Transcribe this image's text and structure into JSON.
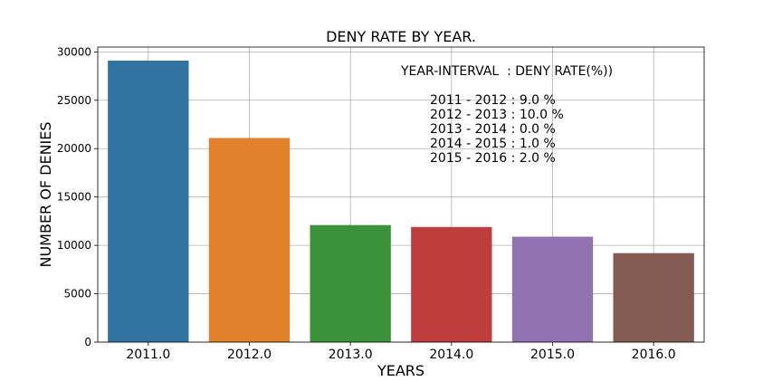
{
  "chart_data": {
    "type": "bar",
    "title": "DENY RATE BY YEAR.",
    "xlabel": "YEARS",
    "ylabel": "NUMBER OF DENIES",
    "categories": [
      "2011.0",
      "2012.0",
      "2013.0",
      "2014.0",
      "2015.0",
      "2016.0"
    ],
    "values": [
      29100,
      21100,
      12100,
      11900,
      10900,
      9200
    ],
    "colors": [
      "#3274a1",
      "#e1812c",
      "#3a923a",
      "#c03d3e",
      "#9372b2",
      "#845b53"
    ],
    "ylim": [
      0,
      30500
    ],
    "yticks": [
      0,
      5000,
      10000,
      15000,
      20000,
      25000,
      30000
    ],
    "grid": true,
    "annotations": [
      "YEAR-INTERVAL  : DENY RATE(%))",
      "2011 - 2012 : 9.0 %",
      "2012 - 2013 : 10.0 %",
      "2013 - 2014 : 0.0 %",
      "2014 - 2015 : 1.0 %",
      "2015 - 2016 : 2.0 %"
    ]
  }
}
